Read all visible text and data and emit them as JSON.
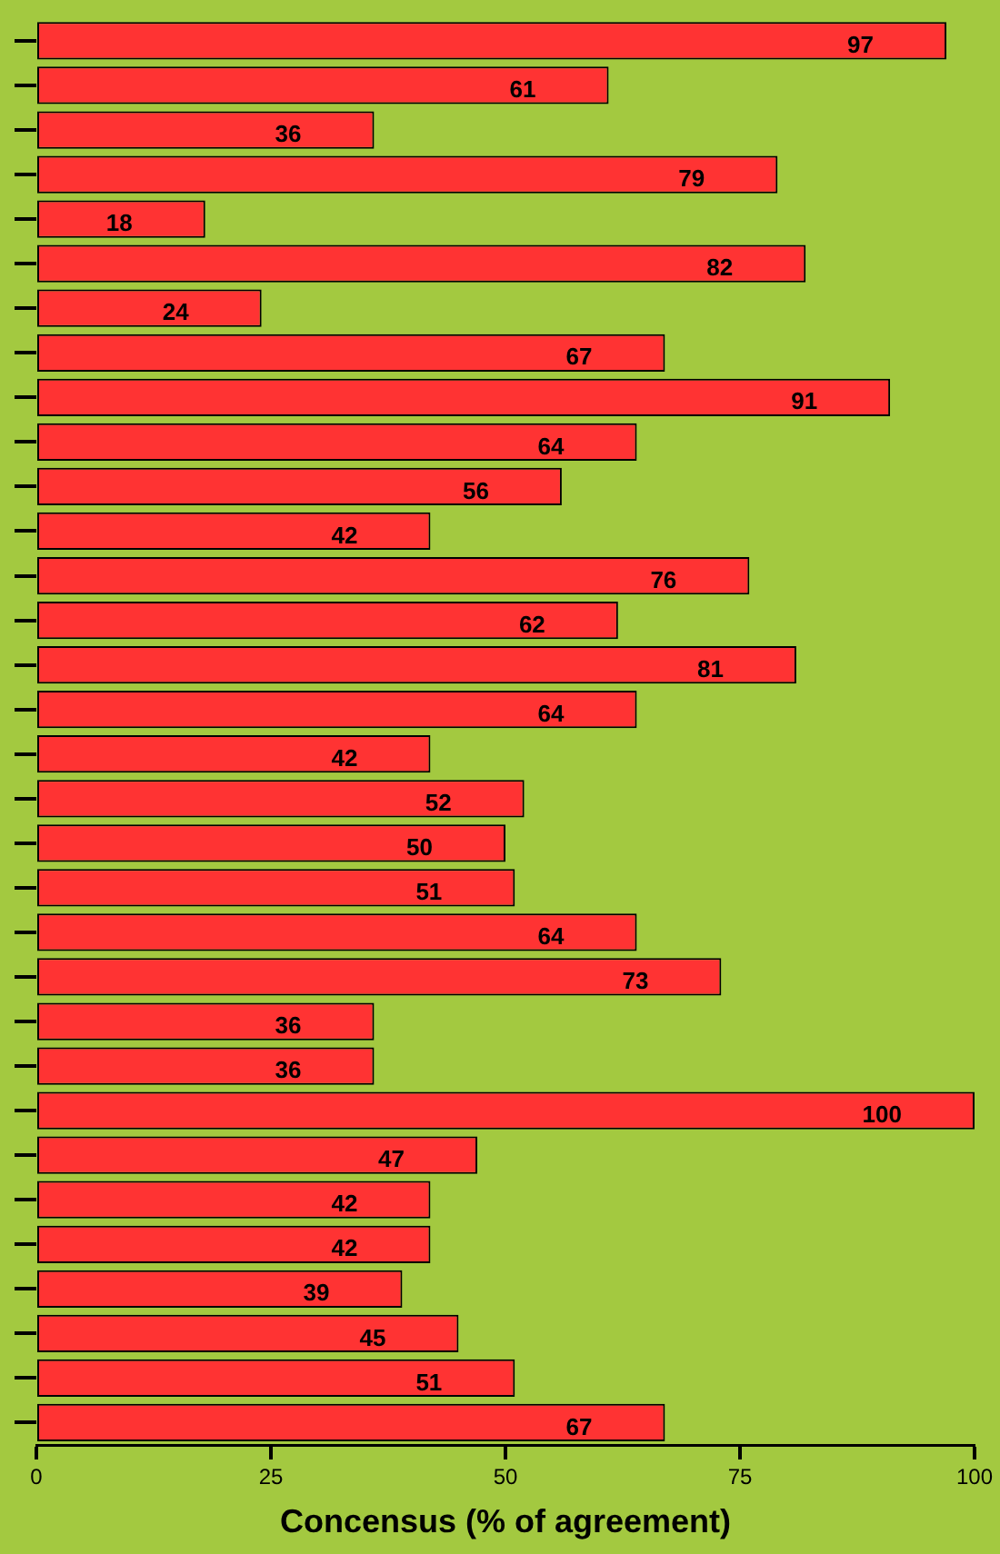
{
  "chart_data": {
    "type": "bar",
    "orientation": "horizontal",
    "xlabel": "Concensus (% of agreement)",
    "categories": [
      null,
      null,
      null,
      null,
      null,
      null,
      null,
      null,
      null,
      null,
      null,
      null,
      null,
      null,
      null,
      null,
      null,
      null,
      null,
      null,
      null,
      null,
      null,
      null,
      null,
      null,
      null,
      null,
      null,
      null,
      null,
      null
    ],
    "values": [
      97,
      61,
      36,
      79,
      18,
      82,
      24,
      67,
      91,
      64,
      56,
      42,
      76,
      62,
      81,
      64,
      42,
      52,
      50,
      51,
      64,
      73,
      36,
      36,
      100,
      47,
      42,
      42,
      39,
      45,
      51,
      67
    ],
    "color": "#ff3333",
    "xlim": [
      0,
      100
    ],
    "xticks": [
      0,
      25,
      50,
      75,
      100
    ],
    "grid": false,
    "legend": false,
    "data_labels": true
  }
}
